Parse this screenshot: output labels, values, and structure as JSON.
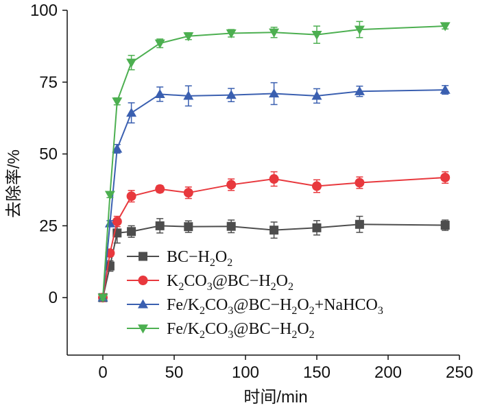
{
  "chart_data": {
    "type": "line",
    "xlabel": "时间/min",
    "ylabel": "去除率/%",
    "xlim": [
      -25,
      250
    ],
    "ylim": [
      -20,
      100
    ],
    "xticks": [
      0,
      50,
      100,
      150,
      200,
      250
    ],
    "yticks": [
      0,
      25,
      50,
      75,
      100
    ],
    "grid": false,
    "legend_position": "bottom-left",
    "x": [
      0,
      5,
      10,
      20,
      40,
      60,
      90,
      120,
      150,
      180,
      240
    ],
    "series": [
      {
        "name": "BC−H2O2",
        "legend": [
          {
            "t": "BC−H"
          },
          {
            "t": "2",
            "sub": true
          },
          {
            "t": "O"
          },
          {
            "t": "2",
            "sub": true
          }
        ],
        "marker": "square",
        "color": "#4d4d4d",
        "values": [
          0,
          11,
          22.5,
          23,
          25,
          24.7,
          24.8,
          23.5,
          24.3,
          25.5,
          25.2
        ],
        "errors": [
          0.8,
          1.8,
          3.5,
          2,
          2.5,
          2,
          2.2,
          2.8,
          2.5,
          2.8,
          1.8
        ]
      },
      {
        "name": "K2CO3@BC−H2O2",
        "legend": [
          {
            "t": "K"
          },
          {
            "t": "2",
            "sub": true
          },
          {
            "t": "CO"
          },
          {
            "t": "3",
            "sub": true
          },
          {
            "t": "@BC−H"
          },
          {
            "t": "2",
            "sub": true
          },
          {
            "t": "O"
          },
          {
            "t": "2",
            "sub": true
          }
        ],
        "marker": "circle",
        "color": "#e8383d",
        "values": [
          0,
          15.5,
          26.5,
          35.3,
          37.8,
          36.5,
          39.3,
          41.3,
          38.8,
          40,
          41.8
        ],
        "errors": [
          0.8,
          1.2,
          1.8,
          2,
          1.2,
          2,
          2,
          2.5,
          2.2,
          2,
          2
        ]
      },
      {
        "name": "Fe/K2CO3@BC−H2O2+NaHCO3",
        "legend": [
          {
            "t": "Fe/K"
          },
          {
            "t": "2",
            "sub": true
          },
          {
            "t": "CO"
          },
          {
            "t": "3",
            "sub": true
          },
          {
            "t": "@BC−H"
          },
          {
            "t": "2",
            "sub": true
          },
          {
            "t": "O"
          },
          {
            "t": "2",
            "sub": true
          },
          {
            "t": "+NaHCO"
          },
          {
            "t": "3",
            "sub": true
          }
        ],
        "marker": "triangle-up",
        "color": "#3a5fb0",
        "values": [
          0,
          25.8,
          51.8,
          64.3,
          70.8,
          70.2,
          70.5,
          71,
          70.2,
          71.8,
          72.3
        ],
        "errors": [
          0.8,
          1,
          1.5,
          3.5,
          2.5,
          3.5,
          2.3,
          3.8,
          2.5,
          1.8,
          1.5
        ]
      },
      {
        "name": "Fe/K2CO3@BC−H2O2",
        "legend": [
          {
            "t": "Fe/K"
          },
          {
            "t": "2",
            "sub": true
          },
          {
            "t": "CO"
          },
          {
            "t": "3",
            "sub": true
          },
          {
            "t": "@BC−H"
          },
          {
            "t": "2",
            "sub": true
          },
          {
            "t": "O"
          },
          {
            "t": "2",
            "sub": true
          }
        ],
        "marker": "triangle-down",
        "color": "#4caf50",
        "values": [
          0,
          35.8,
          68.3,
          81.8,
          88.5,
          91,
          92,
          92.3,
          91.5,
          93.3,
          94.5
        ],
        "errors": [
          0.8,
          1,
          1.2,
          2.5,
          1.5,
          1.2,
          1.3,
          1.8,
          3,
          2.8,
          1
        ]
      }
    ]
  }
}
